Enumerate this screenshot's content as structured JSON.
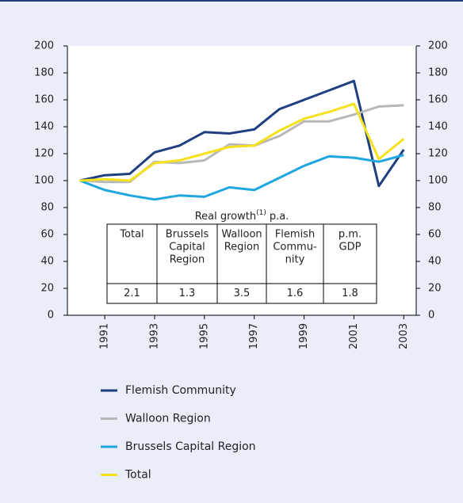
{
  "chart_data": {
    "type": "line",
    "x": [
      1990,
      1991,
      1992,
      1993,
      1994,
      1995,
      1996,
      1997,
      1998,
      1999,
      2000,
      2001,
      2002,
      2003
    ],
    "series": [
      {
        "name": "Flemish Community",
        "color": "#1f3f80",
        "values": [
          100,
          104,
          105,
          121,
          126,
          136,
          135,
          138,
          153,
          160,
          167,
          174,
          96,
          123
        ]
      },
      {
        "name": "Walloon Region",
        "color": "#b8b8b8",
        "values": [
          100,
          99,
          99,
          114,
          113,
          115,
          127,
          126,
          133,
          144,
          144,
          149,
          155,
          156
        ]
      },
      {
        "name": "Brussels Capital Region",
        "color": "#1ea6e0",
        "values": [
          100,
          93,
          89,
          86,
          89,
          88,
          95,
          93,
          102,
          111,
          118,
          117,
          114,
          119
        ]
      },
      {
        "name": "Total",
        "color": "#f5e11c",
        "values": [
          100,
          101,
          100,
          113,
          115,
          120,
          125,
          126,
          137,
          146,
          151,
          157,
          116,
          131
        ]
      }
    ],
    "xlim": [
      1989.5,
      2003.5
    ],
    "xticks": [
      1991,
      1993,
      1995,
      1997,
      1999,
      2001,
      2003
    ],
    "ylim": [
      0,
      200
    ],
    "yticks": [
      0,
      20,
      40,
      60,
      80,
      100,
      120,
      140,
      160,
      180,
      200
    ],
    "y2lim": [
      0,
      200
    ],
    "y2ticks": [
      0,
      20,
      40,
      60,
      80,
      100,
      120,
      140,
      160,
      180,
      200
    ],
    "grid": false,
    "table": {
      "title": "Real growth",
      "title_sup": "(1)",
      "title_suffix": "p.a.",
      "header": [
        [
          "Total"
        ],
        [
          "Brussels",
          "Capital",
          "Region"
        ],
        [
          "Walloon",
          "Region"
        ],
        [
          "Flemish",
          "Commu-",
          "nity"
        ],
        [
          "p.m.",
          "GDP"
        ]
      ],
      "values": [
        2.1,
        1.3,
        3.5,
        1.6,
        1.8
      ]
    }
  }
}
